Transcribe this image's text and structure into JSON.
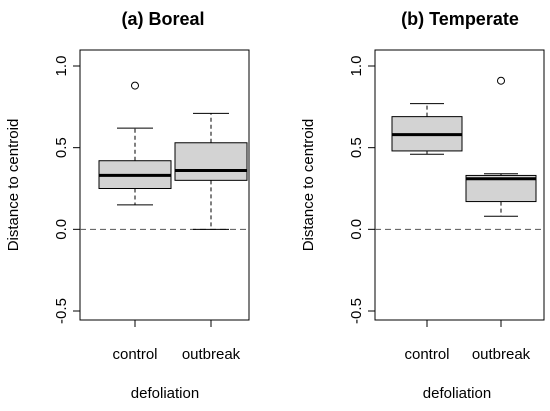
{
  "chart_data": [
    {
      "type": "box",
      "title": "(a) Boreal",
      "xlabel": "defoliation",
      "ylabel": "Distance to centroid",
      "ylim": [
        -0.5,
        1.0
      ],
      "yticks": [
        -0.5,
        0.0,
        0.5,
        1.0
      ],
      "ytick_labels": [
        "-0.5",
        "0.0",
        "0.5",
        "1.0"
      ],
      "categories": [
        "control",
        "outbreak"
      ],
      "reference_line": 0.0,
      "box_fill": "#d3d3d3",
      "boxes": [
        {
          "category": "control",
          "whisker_low": 0.15,
          "q1": 0.25,
          "median": 0.33,
          "q3": 0.42,
          "whisker_high": 0.62,
          "outliers": [
            0.88
          ]
        },
        {
          "category": "outbreak",
          "whisker_low": 0.0,
          "q1": 0.3,
          "median": 0.36,
          "q3": 0.53,
          "whisker_high": 0.71,
          "outliers": []
        }
      ]
    },
    {
      "type": "box",
      "title": "(b) Temperate",
      "xlabel": "defoliation",
      "ylabel": "Distance to centroid",
      "ylim": [
        -0.5,
        1.0
      ],
      "yticks": [
        -0.5,
        0.0,
        0.5,
        1.0
      ],
      "ytick_labels": [
        "-0.5",
        "0.0",
        "0.5",
        "1.0"
      ],
      "categories": [
        "control",
        "outbreak"
      ],
      "reference_line": 0.0,
      "box_fill": "#d3d3d3",
      "boxes": [
        {
          "category": "control",
          "whisker_low": 0.46,
          "q1": 0.48,
          "median": 0.58,
          "q3": 0.69,
          "whisker_high": 0.77,
          "outliers": []
        },
        {
          "category": "outbreak",
          "whisker_low": 0.08,
          "q1": 0.17,
          "median": 0.31,
          "q3": 0.33,
          "whisker_high": 0.34,
          "outliers": [
            0.91
          ]
        }
      ]
    }
  ]
}
